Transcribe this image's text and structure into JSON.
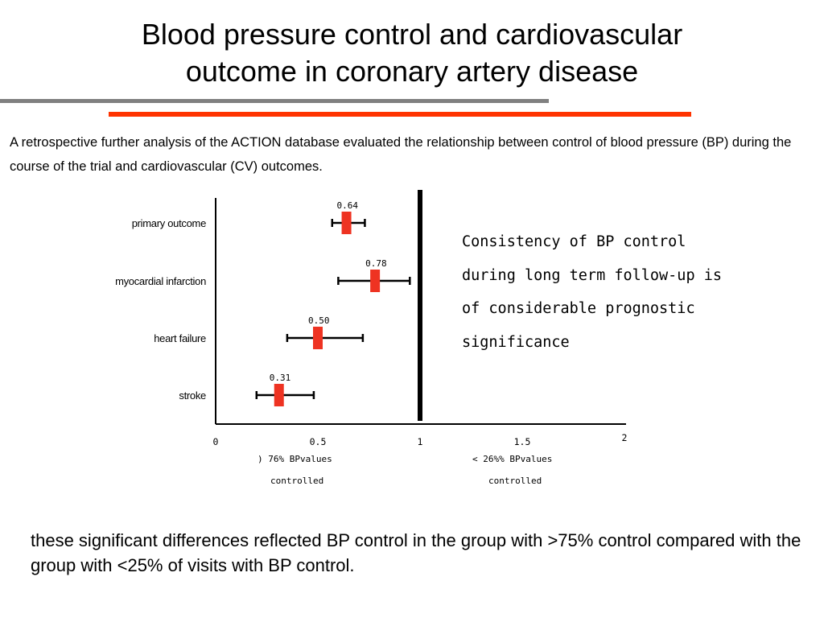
{
  "slide": {
    "title_line1": "Blood pressure control and cardiovascular",
    "title_line2": "outcome in coronary artery disease",
    "intro": "A retrospective further analysis of the ACTION database evaluated the relationship between control of blood pressure (BP) during the course of the trial and cardiovascular (CV) outcomes.",
    "footer": "these significant differences reflected BP control in the group with >75% control compared with the group with <25% of visits with BP control."
  },
  "colors": {
    "rule_gray": "#808080",
    "rule_red": "#ff3300",
    "marker": "#ee3322",
    "line": "#000000"
  },
  "chart_data": {
    "type": "forest",
    "title": "",
    "categories": [
      "primary outcome",
      "myocardial infarction",
      "heart failure",
      "stroke"
    ],
    "estimates": [
      0.64,
      0.78,
      0.5,
      0.31
    ],
    "estimate_labels": [
      "0.64",
      "0.78",
      "0.50",
      "0.31"
    ],
    "ci_lower": [
      0.57,
      0.6,
      0.35,
      0.2
    ],
    "ci_upper": [
      0.73,
      0.95,
      0.72,
      0.48
    ],
    "reference_line": 1,
    "xlim": [
      0,
      2
    ],
    "xticks": [
      "0",
      "0.5",
      "1",
      "1.5",
      "2"
    ],
    "xaxis_captions": {
      "left_line1": ") 76% BPvalues",
      "left_line2": "controlled",
      "right_line1": "< 26%% BPvalues",
      "right_line2": "controlled"
    },
    "annotation": [
      "Consistency of BP control",
      "during long term follow-up is",
      "of considerable prognostic",
      "significance"
    ]
  }
}
